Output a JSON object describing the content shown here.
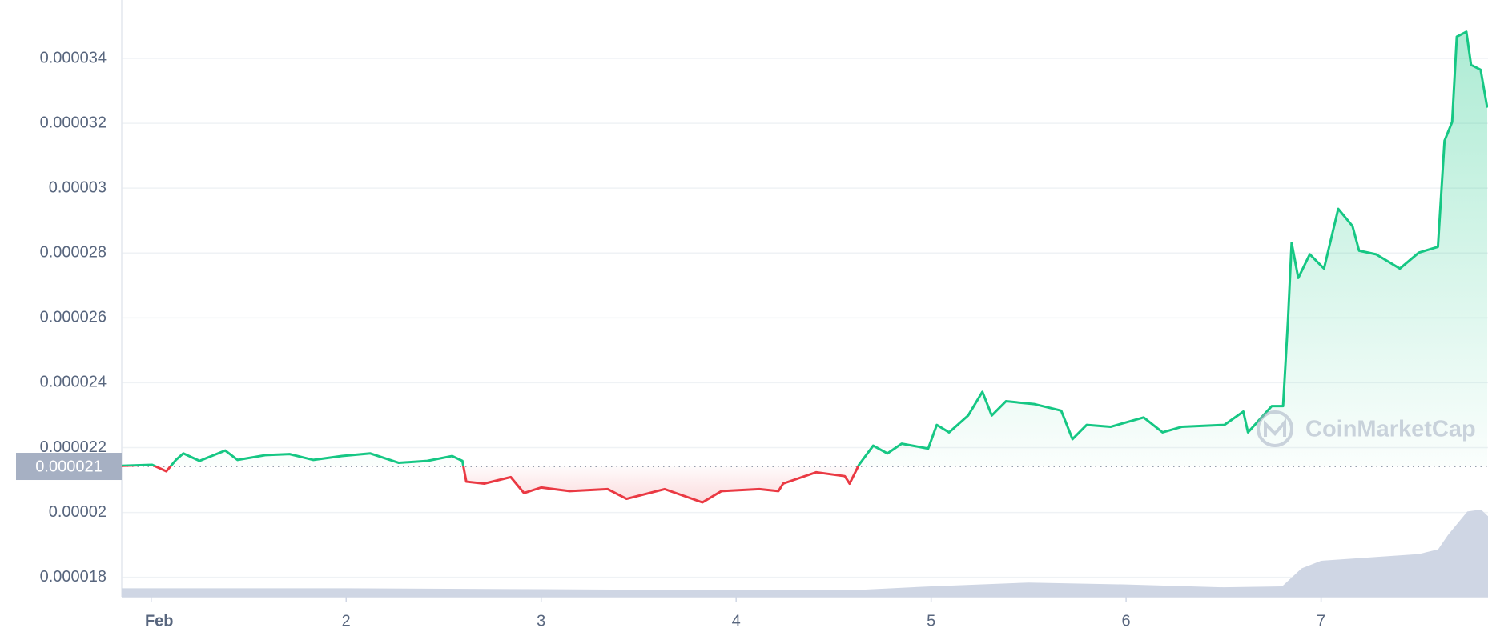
{
  "chart_data": {
    "type": "line",
    "x": [
      0.849,
      1.005,
      1.078,
      1.127,
      1.165,
      1.248,
      1.38,
      1.443,
      1.589,
      1.71,
      1.832,
      1.978,
      2.124,
      2.27,
      2.416,
      2.543,
      2.596,
      2.616,
      2.708,
      2.844,
      2.912,
      3.0,
      3.146,
      3.341,
      3.438,
      3.633,
      3.827,
      3.925,
      4.119,
      4.217,
      4.241,
      4.411,
      4.557,
      4.582,
      4.63,
      4.703,
      4.776,
      4.849,
      4.985,
      5.029,
      5.092,
      5.19,
      5.263,
      5.311,
      5.384,
      5.53,
      5.667,
      5.725,
      5.798,
      5.92,
      6.09,
      6.187,
      6.285,
      6.504,
      6.601,
      6.625,
      6.747,
      6.805,
      6.83,
      6.849,
      6.883,
      6.942,
      7.015,
      7.088,
      7.161,
      7.195,
      7.282,
      7.404,
      7.501,
      7.599,
      7.633,
      7.672,
      7.696,
      7.745,
      7.769,
      7.818,
      7.852
    ],
    "values": [
      2.144e-05,
      2.147e-05,
      2.127e-05,
      2.162e-05,
      2.182e-05,
      2.159e-05,
      2.191e-05,
      2.162e-05,
      2.177e-05,
      2.18e-05,
      2.162e-05,
      2.174e-05,
      2.182e-05,
      2.153e-05,
      2.159e-05,
      2.174e-05,
      2.159e-05,
      2.095e-05,
      2.089e-05,
      2.109e-05,
      2.06e-05,
      2.077e-05,
      2.066e-05,
      2.072e-05,
      2.042e-05,
      2.072e-05,
      2.031e-05,
      2.066e-05,
      2.072e-05,
      2.066e-05,
      2.089e-05,
      2.124e-05,
      2.112e-05,
      2.089e-05,
      2.147e-05,
      2.206e-05,
      2.182e-05,
      2.212e-05,
      2.197e-05,
      2.27e-05,
      2.247e-05,
      2.299e-05,
      2.372e-05,
      2.299e-05,
      2.343e-05,
      2.334e-05,
      2.314e-05,
      2.226e-05,
      2.27e-05,
      2.264e-05,
      2.293e-05,
      2.247e-05,
      2.264e-05,
      2.27e-05,
      2.311e-05,
      2.247e-05,
      2.328e-05,
      2.328e-05,
      2.591e-05,
      2.831e-05,
      2.723e-05,
      2.796e-05,
      2.752e-05,
      2.936e-05,
      2.883e-05,
      2.807e-05,
      2.796e-05,
      2.752e-05,
      2.801e-05,
      2.819e-05,
      3.146e-05,
      3.204e-05,
      3.467e-05,
      3.482e-05,
      3.38e-05,
      3.365e-05,
      3.248e-05
    ],
    "colors": {
      "up": "#16c784",
      "down": "#ea3943"
    },
    "baseline": {
      "value": 2.142e-05,
      "label": "0.000021"
    },
    "xlim": [
      0.849,
      7.856
    ],
    "xticks": [
      {
        "value": 1,
        "label": "Feb"
      },
      2,
      3,
      4,
      5,
      6,
      7
    ],
    "ylim": [
      1.74e-05,
      3.58e-05
    ],
    "yticks": [
      1.8e-05,
      2e-05,
      2.2e-05,
      2.4e-05,
      2.6e-05,
      2.8e-05,
      3e-05,
      3.2e-05,
      3.4e-05
    ],
    "grid": true,
    "volume": {
      "color": "#cfd6e4",
      "x": [
        0.849,
        2,
        3,
        4,
        4.6,
        5,
        5.5,
        6,
        6.5,
        6.8,
        6.9,
        7.0,
        7.5,
        7.6,
        7.65,
        7.75,
        7.82,
        7.856
      ],
      "values": [
        9,
        9,
        8,
        7,
        7,
        11,
        15,
        13,
        10,
        11,
        30,
        38,
        45,
        50,
        65,
        90,
        92,
        85
      ]
    },
    "watermark": "CoinMarketCap"
  }
}
